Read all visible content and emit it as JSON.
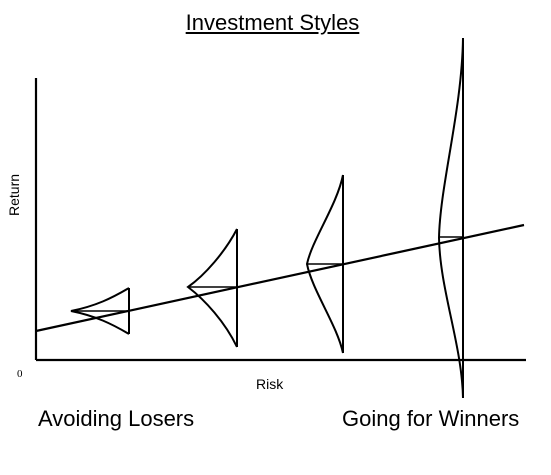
{
  "title": "Investment Styles",
  "axes": {
    "xlabel": "Risk",
    "ylabel": "Return",
    "origin": "0"
  },
  "captions": {
    "left": "Avoiding Losers",
    "right": "Going for Winners"
  },
  "colors": {
    "stroke": "#000000",
    "background": "#ffffff"
  }
}
